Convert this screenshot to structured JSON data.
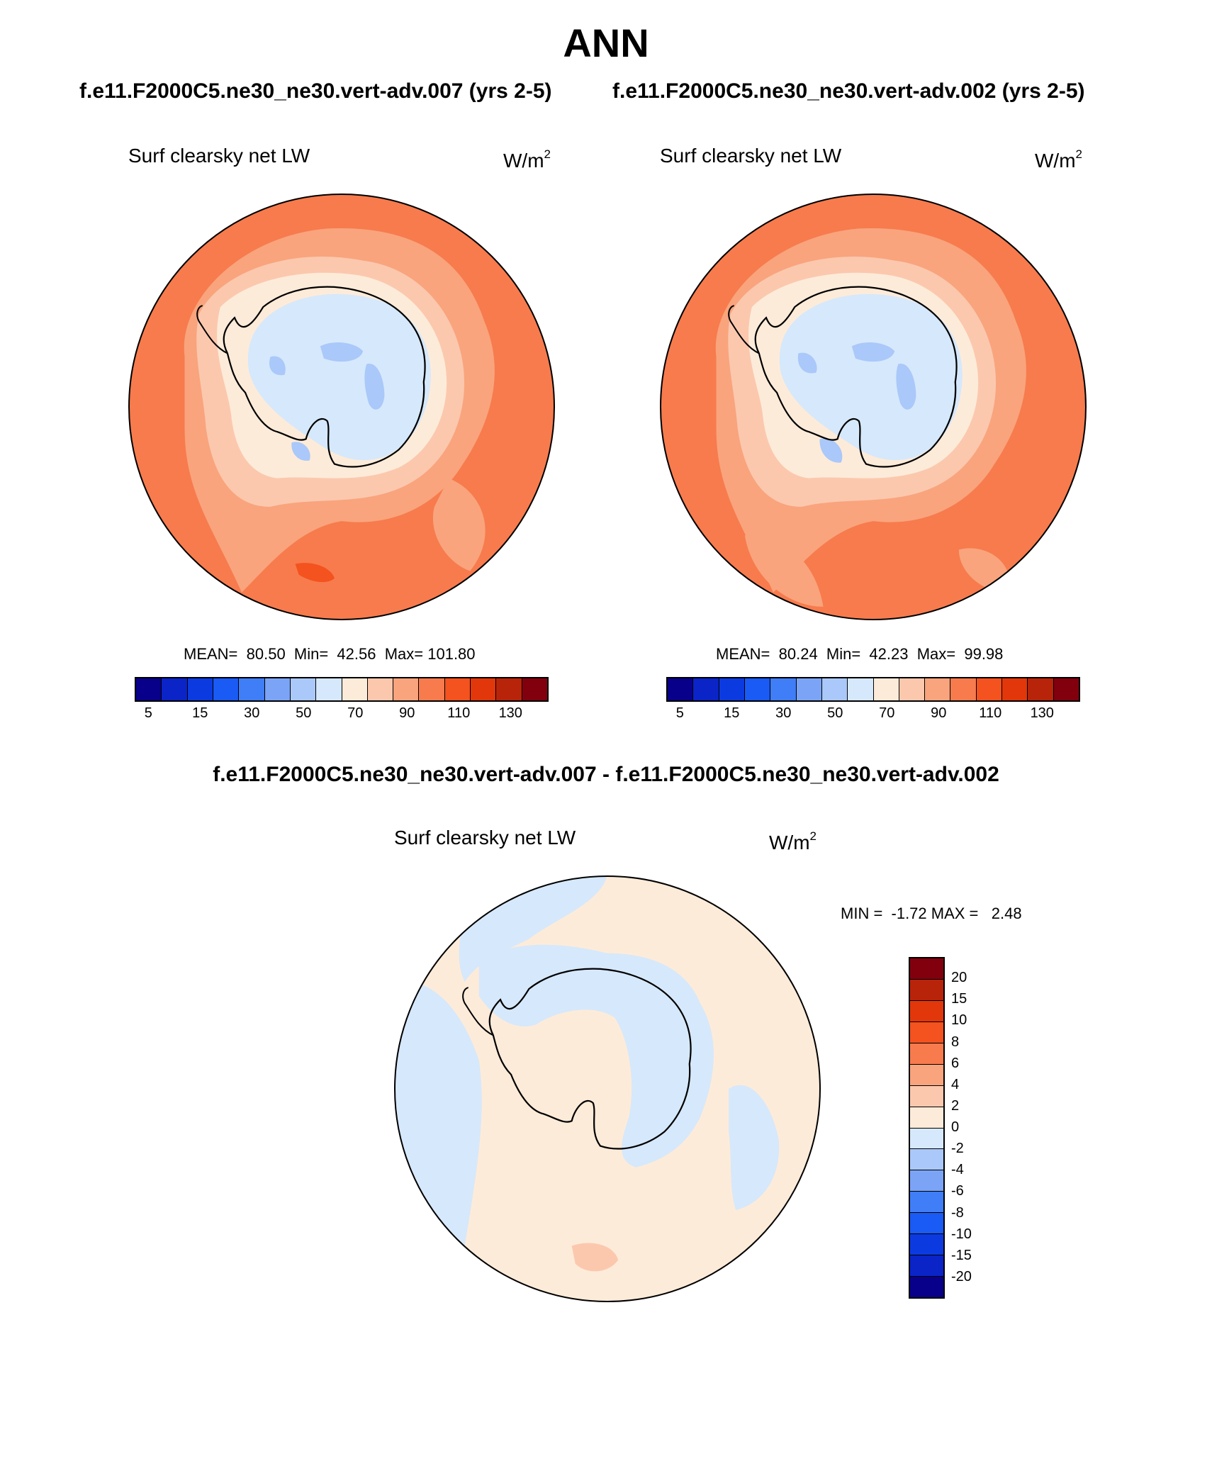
{
  "title": "ANN",
  "panels": {
    "top_left": {
      "case": "f.e11.F2000C5.ne30_ne30.vert-adv.007 (yrs 2-5)",
      "variable": "Surf clearsky net LW",
      "units_base": "W/m",
      "units_exp": "2",
      "stats": "MEAN=  80.50  Min=  42.56  Max= 101.80"
    },
    "top_right": {
      "case": "f.e11.F2000C5.ne30_ne30.vert-adv.002 (yrs 2-5)",
      "variable": "Surf clearsky net LW",
      "units_base": "W/m",
      "units_exp": "2",
      "stats": "MEAN=  80.24  Min=  42.23  Max=  99.98"
    },
    "difference": {
      "title": "f.e11.F2000C5.ne30_ne30.vert-adv.007 - f.e11.F2000C5.ne30_ne30.vert-adv.002",
      "variable": "Surf clearsky net LW",
      "units_base": "W/m",
      "units_exp": "2",
      "stats": "MIN =  -1.72 MAX =   2.48"
    }
  },
  "colorbar_main": {
    "colors": [
      "#08008a",
      "#0a24c8",
      "#0b3be0",
      "#1a5af5",
      "#3f7ef7",
      "#7ba4f7",
      "#aac8f9",
      "#d6e8fb",
      "#fdebd9",
      "#fbc8ae",
      "#f9a47d",
      "#f77b4d",
      "#f4521e",
      "#e2370a",
      "#b8240a",
      "#82000e"
    ],
    "ticks": [
      "5",
      "15",
      "30",
      "50",
      "70",
      "90",
      "110",
      "130"
    ]
  },
  "colorbar_diff": {
    "colors": [
      "#82000e",
      "#b8240a",
      "#e2370a",
      "#f4521e",
      "#f77b4d",
      "#f9a47d",
      "#fbc8ae",
      "#fdebd9",
      "#d6e8fb",
      "#aac8f9",
      "#7ba4f7",
      "#3f7ef7",
      "#1a5af5",
      "#0b3be0",
      "#0a24c8",
      "#08008a"
    ],
    "ticks": [
      "20",
      "15",
      "10",
      "8",
      "6",
      "4",
      "2",
      "0",
      "-2",
      "-4",
      "-6",
      "-8",
      "-10",
      "-15",
      "-20"
    ]
  },
  "fill_colors": {
    "ocean_outer": "#f77b4d",
    "ocean_mid": "#f9a47d",
    "coastal": "#fbc8ae",
    "ice_edge": "#fdebd9",
    "plateau": "#d6e8fb",
    "cold_core": "#aac8f9",
    "hot_patch": "#f4521e",
    "diff_pos": "#fdebd9",
    "diff_neg": "#d6e8fb",
    "diff_pos2": "#fbc8ae"
  }
}
